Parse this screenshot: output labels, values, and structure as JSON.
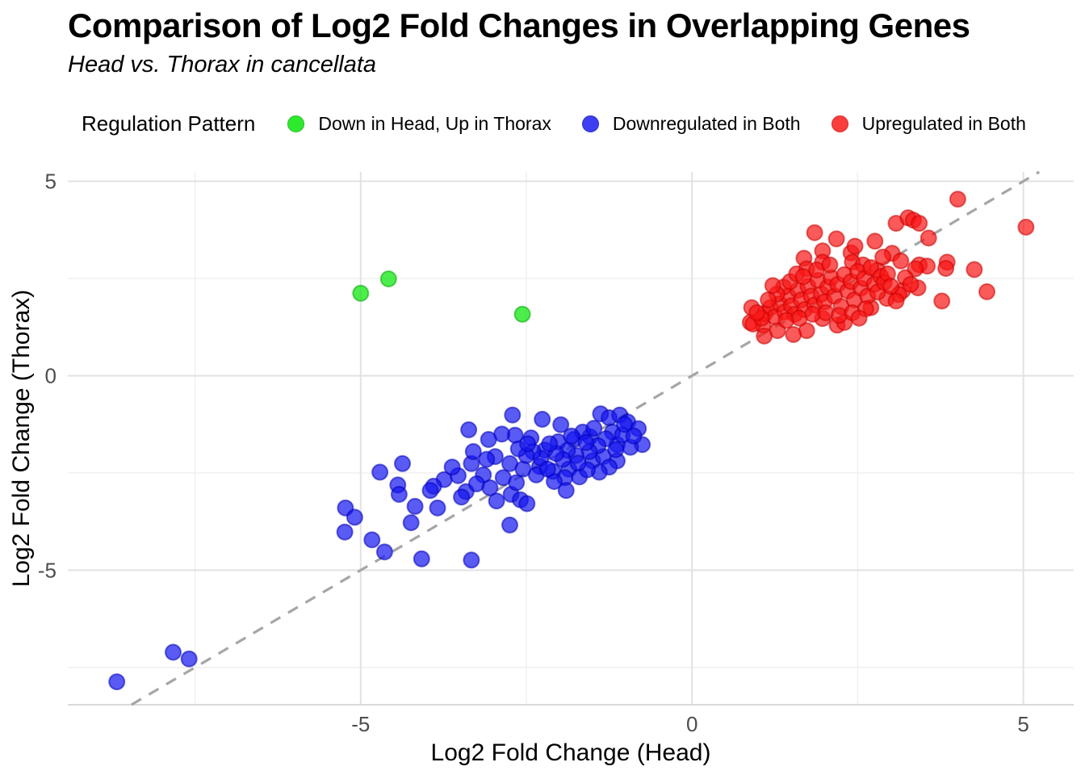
{
  "header": {
    "title": "Comparison of Log2 Fold Changes in Overlapping Genes",
    "subtitle": "Head vs. Thorax in cancellata"
  },
  "legend": {
    "title": "Regulation Pattern"
  },
  "style": {
    "background": "#ffffff",
    "grid_major_color": "#e2e2e2",
    "grid_minor_color": "#efefef",
    "axis_line_color": "#d9d9d9",
    "tick_label_color": "#4d4d4d",
    "reference_line_color": "#a6a6a6"
  },
  "chart_data": {
    "type": "scatter",
    "title": "Comparison of Log2 Fold Changes in Overlapping Genes",
    "subtitle": "Head vs. Thorax in cancellata",
    "xlabel": "Log2 Fold Change (Head)",
    "ylabel": "Log2 Fold Change (Thorax)",
    "legend_title": "Regulation Pattern",
    "legend_position": "top",
    "grid": true,
    "xlim": [
      -9.42,
      5.76
    ],
    "ylim": [
      -8.46,
      5.24
    ],
    "x_ticks": {
      "values": [
        -5,
        0,
        5
      ],
      "labels": [
        "-5",
        "0",
        "5"
      ]
    },
    "y_ticks": {
      "values": [
        -5,
        0,
        5
      ],
      "labels": [
        "-5",
        "0",
        "5"
      ]
    },
    "x_minor": [
      -7.5,
      -2.5,
      2.5
    ],
    "y_minor": [
      -7.5,
      -2.5,
      2.5
    ],
    "reference_line": {
      "kind": "identity",
      "equation": "y = x",
      "style": "dashed",
      "color": "#a6a6a6"
    },
    "series": [
      {
        "name": "Down in Head, Up in Thorax",
        "color": "#00e600",
        "stroke": "#00a800",
        "points": [
          [
            -5.0,
            2.12
          ],
          [
            -4.58,
            2.49
          ],
          [
            -2.56,
            1.58
          ]
        ]
      },
      {
        "name": "Downregulated in Both",
        "color": "#1414f0",
        "stroke": "#0000b8",
        "points": [
          [
            -2.71,
            -1.01
          ],
          [
            -2.26,
            -1.12
          ],
          [
            -1.98,
            -1.26
          ],
          [
            -1.38,
            -0.98
          ],
          [
            -1.25,
            -1.08
          ],
          [
            -1.09,
            -1.01
          ],
          [
            -0.97,
            -1.19
          ],
          [
            -0.81,
            -1.36
          ],
          [
            -0.75,
            -1.77
          ],
          [
            -1.13,
            -1.77
          ],
          [
            -1.54,
            -1.57
          ],
          [
            -1.78,
            -1.64
          ],
          [
            -2.02,
            -1.7
          ],
          [
            -2.22,
            -1.91
          ],
          [
            -2.43,
            -1.6
          ],
          [
            -2.67,
            -1.53
          ],
          [
            -2.87,
            -1.5
          ],
          [
            -3.07,
            -1.64
          ],
          [
            -2.97,
            -2.08
          ],
          [
            -2.75,
            -2.26
          ],
          [
            -2.55,
            -2.4
          ],
          [
            -2.3,
            -2.33
          ],
          [
            -2.1,
            -2.46
          ],
          [
            -1.86,
            -2.4
          ],
          [
            -1.7,
            -2.6
          ],
          [
            -1.5,
            -2.19
          ],
          [
            -1.34,
            -2.08
          ],
          [
            -1.13,
            -2.19
          ],
          [
            -0.93,
            -1.84
          ],
          [
            -1.2,
            -1.45
          ],
          [
            -1.3,
            -1.62
          ],
          [
            -1.42,
            -1.8
          ],
          [
            -1.55,
            -1.95
          ],
          [
            -1.65,
            -1.45
          ],
          [
            -1.75,
            -2.05
          ],
          [
            -1.88,
            -1.92
          ],
          [
            -1.95,
            -2.15
          ],
          [
            -2.05,
            -2.0
          ],
          [
            -2.15,
            -1.75
          ],
          [
            -2.28,
            -2.12
          ],
          [
            -2.4,
            -1.95
          ],
          [
            -2.5,
            -2.05
          ],
          [
            -2.62,
            -1.88
          ],
          [
            -1.05,
            -1.52
          ],
          [
            -1.15,
            -1.9
          ],
          [
            -0.88,
            -1.55
          ],
          [
            -1.48,
            -1.35
          ],
          [
            -1.6,
            -1.72
          ],
          [
            -1.25,
            -2.35
          ],
          [
            -1.4,
            -2.48
          ],
          [
            -1.58,
            -2.42
          ],
          [
            -1.72,
            -2.25
          ],
          [
            -1.92,
            -2.62
          ],
          [
            -2.08,
            -2.72
          ],
          [
            -1.02,
            -1.25
          ],
          [
            -2.35,
            -2.55
          ],
          [
            -2.18,
            -2.4
          ],
          [
            -1.82,
            -1.55
          ],
          [
            -2.48,
            -1.75
          ],
          [
            -3.37,
            -1.39
          ],
          [
            -4.37,
            -2.26
          ],
          [
            -4.71,
            -2.48
          ],
          [
            -3.33,
            -2.26
          ],
          [
            -3.53,
            -2.57
          ],
          [
            -3.74,
            -2.67
          ],
          [
            -4.44,
            -2.81
          ],
          [
            -3.9,
            -2.84
          ],
          [
            -5.23,
            -3.4
          ],
          [
            -5.09,
            -3.64
          ],
          [
            -5.24,
            -4.02
          ],
          [
            -4.83,
            -4.22
          ],
          [
            -4.64,
            -4.53
          ],
          [
            -4.42,
            -3.05
          ],
          [
            -4.18,
            -3.36
          ],
          [
            -4.24,
            -3.78
          ],
          [
            -3.95,
            -2.95
          ],
          [
            -3.84,
            -3.4
          ],
          [
            -4.08,
            -4.71
          ],
          [
            -3.33,
            -4.74
          ],
          [
            -3.41,
            -2.98
          ],
          [
            -2.95,
            -3.22
          ],
          [
            -2.73,
            -3.05
          ],
          [
            -2.59,
            -3.19
          ],
          [
            -2.49,
            -3.29
          ],
          [
            -2.75,
            -3.84
          ],
          [
            -1.9,
            -2.95
          ],
          [
            -3.15,
            -2.55
          ],
          [
            -3.25,
            -2.78
          ],
          [
            -3.05,
            -2.88
          ],
          [
            -2.85,
            -2.62
          ],
          [
            -2.65,
            -2.75
          ],
          [
            -3.48,
            -3.12
          ],
          [
            -3.62,
            -2.35
          ],
          [
            -3.1,
            -2.15
          ],
          [
            -3.3,
            -1.95
          ],
          [
            -7.83,
            -7.11
          ],
          [
            -7.59,
            -7.28
          ],
          [
            -8.68,
            -7.87
          ]
        ]
      },
      {
        "name": "Upregulated in Both",
        "color": "#fa1414",
        "stroke": "#c80000",
        "points": [
          [
            1.85,
            3.68
          ],
          [
            2.18,
            3.52
          ],
          [
            1.97,
            3.21
          ],
          [
            1.69,
            3.02
          ],
          [
            1.97,
            2.92
          ],
          [
            2.4,
            3.16
          ],
          [
            2.42,
            2.92
          ],
          [
            2.76,
            3.46
          ],
          [
            3.08,
            3.92
          ],
          [
            3.26,
            4.06
          ],
          [
            2.58,
            2.85
          ],
          [
            1.73,
            2.75
          ],
          [
            4.01,
            4.54
          ],
          [
            3.34,
            4.0
          ],
          [
            3.43,
            3.92
          ],
          [
            3.57,
            3.54
          ],
          [
            5.04,
            3.82
          ],
          [
            3.43,
            2.85
          ],
          [
            3.55,
            2.82
          ],
          [
            3.85,
            2.92
          ],
          [
            4.26,
            2.73
          ],
          [
            2.8,
            2.71
          ],
          [
            3.37,
            2.75
          ],
          [
            3.83,
            2.76
          ],
          [
            3.41,
            2.26
          ],
          [
            3.18,
            2.19
          ],
          [
            3.12,
            2.09
          ],
          [
            2.94,
            1.99
          ],
          [
            3.08,
            1.92
          ],
          [
            3.77,
            1.92
          ],
          [
            4.45,
            2.16
          ],
          [
            2.7,
            1.75
          ],
          [
            2.19,
            1.3
          ],
          [
            2.3,
            1.37
          ],
          [
            1.97,
            1.47
          ],
          [
            1.73,
            1.16
          ],
          [
            1.53,
            1.06
          ],
          [
            1.29,
            1.16
          ],
          [
            1.07,
            1.3
          ],
          [
            0.88,
            1.37
          ],
          [
            0.9,
            1.75
          ],
          [
            0.92,
            1.33
          ],
          [
            1.09,
            1.02
          ],
          [
            1.1,
            1.6
          ],
          [
            1.18,
            1.75
          ],
          [
            1.25,
            1.52
          ],
          [
            1.32,
            1.85
          ],
          [
            1.4,
            1.64
          ],
          [
            1.45,
            2.05
          ],
          [
            1.5,
            1.8
          ],
          [
            1.55,
            1.58
          ],
          [
            1.6,
            2.2
          ],
          [
            1.65,
            1.95
          ],
          [
            1.7,
            1.7
          ],
          [
            1.75,
            2.3
          ],
          [
            1.8,
            2.05
          ],
          [
            1.85,
            1.82
          ],
          [
            1.9,
            2.45
          ],
          [
            1.95,
            2.1
          ],
          [
            2.0,
            1.9
          ],
          [
            2.05,
            2.28
          ],
          [
            2.1,
            2.52
          ],
          [
            2.15,
            2.05
          ],
          [
            2.2,
            2.35
          ],
          [
            2.25,
            1.78
          ],
          [
            2.3,
            2.6
          ],
          [
            2.35,
            2.18
          ],
          [
            2.4,
            2.42
          ],
          [
            2.45,
            1.95
          ],
          [
            2.5,
            2.68
          ],
          [
            2.55,
            2.25
          ],
          [
            2.6,
            2.5
          ],
          [
            2.65,
            2.05
          ],
          [
            2.7,
            2.78
          ],
          [
            2.75,
            2.35
          ],
          [
            2.8,
            2.15
          ],
          [
            2.85,
            2.55
          ],
          [
            2.9,
            2.4
          ],
          [
            2.95,
            2.62
          ],
          [
            3.0,
            2.3
          ],
          [
            1.38,
            2.28
          ],
          [
            1.48,
            2.42
          ],
          [
            1.58,
            2.62
          ],
          [
            1.28,
            2.1
          ],
          [
            1.15,
            1.95
          ],
          [
            1.05,
            1.48
          ],
          [
            0.98,
            1.62
          ],
          [
            1.42,
            1.42
          ],
          [
            1.62,
            1.48
          ],
          [
            1.82,
            1.58
          ],
          [
            2.02,
            1.62
          ],
          [
            2.22,
            1.55
          ],
          [
            2.42,
            1.62
          ],
          [
            2.62,
            1.72
          ],
          [
            2.52,
            1.48
          ],
          [
            1.22,
            2.32
          ],
          [
            1.68,
            2.55
          ],
          [
            1.88,
            2.72
          ],
          [
            2.08,
            2.85
          ],
          [
            2.46,
            3.33
          ],
          [
            3.02,
            3.15
          ],
          [
            2.88,
            3.05
          ],
          [
            3.15,
            2.95
          ],
          [
            3.22,
            2.52
          ],
          [
            3.3,
            2.35
          ]
        ]
      }
    ]
  }
}
